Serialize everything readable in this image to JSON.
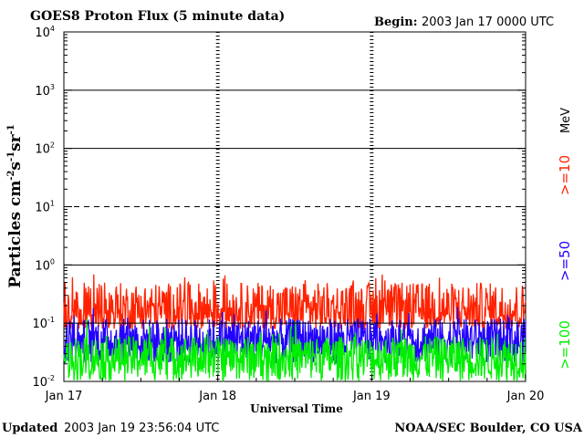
{
  "chart_data": {
    "type": "line",
    "title": "GOES8 Proton Flux (5 minute data)",
    "begin_label": "Begin:",
    "begin_value": "2003 Jan 17 0000 UTC",
    "xlabel": "Universal Time",
    "ylabel_main": "Particles cm",
    "ylabel_exp1": "-2",
    "ylabel_mid1": "s",
    "ylabel_exp2": "-1",
    "ylabel_mid2": "sr",
    "ylabel_exp3": "-1",
    "y_scale": "log",
    "ylim": [
      0.01,
      10000
    ],
    "y_ticks": [
      {
        "base": "10",
        "exp": "-2",
        "value": 0.01
      },
      {
        "base": "10",
        "exp": "-1",
        "value": 0.1
      },
      {
        "base": "10",
        "exp": "0",
        "value": 1
      },
      {
        "base": "10",
        "exp": "1",
        "value": 10
      },
      {
        "base": "10",
        "exp": "2",
        "value": 100
      },
      {
        "base": "10",
        "exp": "3",
        "value": 1000
      },
      {
        "base": "10",
        "exp": "4",
        "value": 10000
      }
    ],
    "x_ticks": [
      "Jan 17",
      "Jan 18",
      "Jan 19",
      "Jan 20"
    ],
    "xlim_days": [
      0,
      3
    ],
    "gridlines": {
      "solid": [
        1,
        100,
        1000
      ],
      "dashed": [
        10
      ]
    },
    "threshold_line": 0.1,
    "right_unit_label": "MeV",
    "series": [
      {
        "name": ">=10",
        "color": "#ff2200",
        "typical_range": [
          0.08,
          0.5
        ],
        "peak": 0.7
      },
      {
        "name": ">=50",
        "color": "#2200ff",
        "typical_range": [
          0.02,
          0.12
        ],
        "peak": 0.2
      },
      {
        "name": ">=100",
        "color": "#00ee00",
        "typical_range": [
          0.01,
          0.06
        ],
        "peak": 0.12
      }
    ]
  },
  "footer": {
    "updated_label": "Updated",
    "updated_value": "2003 Jan 19 23:56:04 UTC",
    "source": "NOAA/SEC Boulder, CO USA"
  }
}
